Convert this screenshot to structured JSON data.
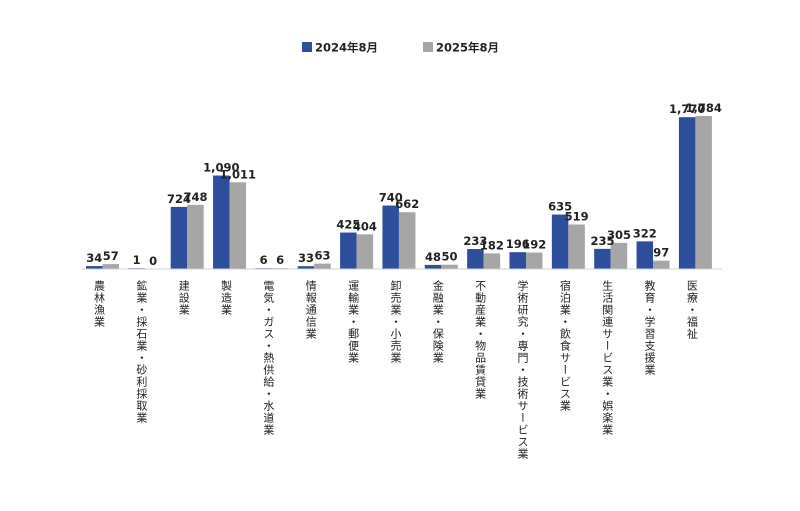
{
  "chart_data": {
    "type": "bar",
    "categories": [
      "農林漁業",
      "鉱業・採石業・砂利採取業",
      "建設業",
      "製造業",
      "電気・ガス・熱供給・水道業",
      "情報通信業",
      "運輸業・郵便業",
      "卸売業・小売業",
      "金融業・保険業",
      "不動産業・物品賃貸業",
      "学術研究・専門・技術サービス業",
      "宿泊業・飲食サービス業",
      "生活関連サービス業・娯楽業",
      "教育・学習支援業",
      "医療・福祉"
    ],
    "series": [
      {
        "name": "2024年8月",
        "color": "#2E4D9B",
        "values": [
          34,
          1,
          724,
          1090,
          6,
          33,
          425,
          740,
          48,
          233,
          196,
          635,
          235,
          322,
          1770
        ],
        "labels": [
          "34",
          "1",
          "724",
          "1,090",
          "6",
          "33",
          "425",
          "740",
          "48",
          "233",
          "196",
          "635",
          "235",
          "322",
          "1,770"
        ]
      },
      {
        "name": "2025年8月",
        "color": "#A6A6A6",
        "values": [
          57,
          0,
          748,
          1011,
          6,
          63,
          404,
          662,
          50,
          182,
          192,
          519,
          305,
          97,
          1784
        ],
        "labels": [
          "57",
          "0",
          "748",
          "1,011",
          "6",
          "63",
          "404",
          "662",
          "50",
          "182",
          "192",
          "519",
          "305",
          "97",
          "1,784"
        ]
      }
    ],
    "title": "",
    "xlabel": "",
    "ylabel": "",
    "ylim": [
      0,
      1850
    ],
    "grid": false,
    "legend": "top-center"
  }
}
